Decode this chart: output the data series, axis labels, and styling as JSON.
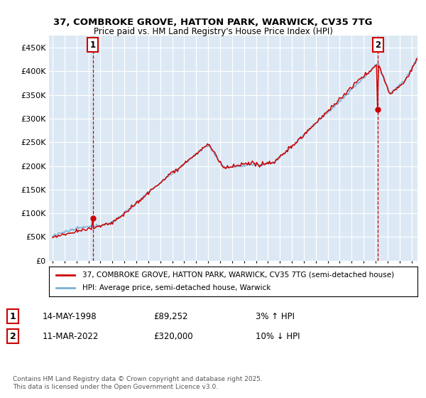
{
  "title": "37, COMBROKE GROVE, HATTON PARK, WARWICK, CV35 7TG",
  "subtitle": "Price paid vs. HM Land Registry's House Price Index (HPI)",
  "ylabel_ticks": [
    "£0",
    "£50K",
    "£100K",
    "£150K",
    "£200K",
    "£250K",
    "£300K",
    "£350K",
    "£400K",
    "£450K"
  ],
  "ytick_vals": [
    0,
    50000,
    100000,
    150000,
    200000,
    250000,
    300000,
    350000,
    400000,
    450000
  ],
  "ylim": [
    0,
    475000
  ],
  "xlim_start": 1994.7,
  "xlim_end": 2025.5,
  "xticks": [
    1995,
    1996,
    1997,
    1998,
    1999,
    2000,
    2001,
    2002,
    2003,
    2004,
    2005,
    2006,
    2007,
    2008,
    2009,
    2010,
    2011,
    2012,
    2013,
    2014,
    2015,
    2016,
    2017,
    2018,
    2019,
    2020,
    2021,
    2022,
    2023,
    2024,
    2025
  ],
  "hpi_color": "#7bafd4",
  "price_color": "#cc0000",
  "marker1_year": 1998.37,
  "marker1_value": 89252,
  "marker2_year": 2022.19,
  "marker2_value": 320000,
  "legend_label1": "37, COMBROKE GROVE, HATTON PARK, WARWICK, CV35 7TG (semi-detached house)",
  "legend_label2": "HPI: Average price, semi-detached house, Warwick",
  "annotation1_date": "14-MAY-1998",
  "annotation1_price": "£89,252",
  "annotation1_hpi": "3% ↑ HPI",
  "annotation2_date": "11-MAR-2022",
  "annotation2_price": "£320,000",
  "annotation2_hpi": "10% ↓ HPI",
  "footer": "Contains HM Land Registry data © Crown copyright and database right 2025.\nThis data is licensed under the Open Government Licence v3.0.",
  "background_color": "#ffffff",
  "plot_bg_color": "#dce9f5",
  "grid_color": "#ffffff"
}
